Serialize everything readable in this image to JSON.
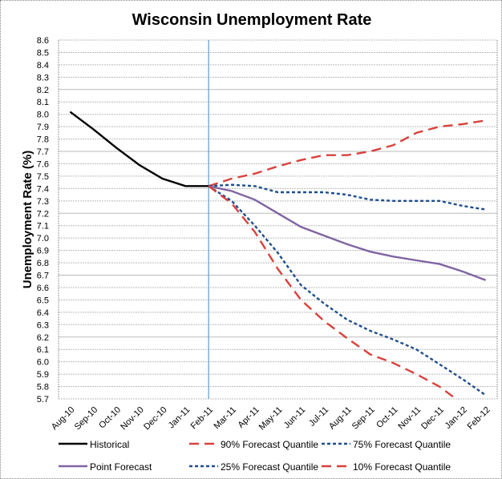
{
  "chart_data": {
    "type": "line",
    "title": "Wisconsin Unemployment Rate",
    "xlabel": "",
    "ylabel": "Unemployment Rate (%)",
    "ylim": [
      5.7,
      8.6
    ],
    "ytick_step": 0.1,
    "grid": true,
    "legend_position": "bottom",
    "forecast_start_marker": "Feb-11",
    "categories": [
      "Aug-10",
      "Sep-10",
      "Oct-10",
      "Nov-10",
      "Dec-10",
      "Jan-11",
      "Feb-11",
      "Mar-11",
      "Apr-11",
      "May-11",
      "Jun-11",
      "Jul-11",
      "Aug-11",
      "Sep-11",
      "Oct-11",
      "Nov-11",
      "Dec-11",
      "Jan-12",
      "Feb-12"
    ],
    "series": [
      {
        "name": "Historical",
        "color": "#000000",
        "dash": "solid",
        "values": [
          8.02,
          7.88,
          7.73,
          7.59,
          7.48,
          7.42,
          7.42,
          null,
          null,
          null,
          null,
          null,
          null,
          null,
          null,
          null,
          null,
          null,
          null
        ]
      },
      {
        "name": "90% Forecast Quantile",
        "color": "#d9413c",
        "dash": "long",
        "values": [
          null,
          null,
          null,
          null,
          null,
          null,
          7.42,
          7.48,
          7.52,
          7.58,
          7.63,
          7.67,
          7.67,
          7.7,
          7.75,
          7.85,
          7.9,
          7.92,
          7.95
        ]
      },
      {
        "name": "75% Forecast Quantile",
        "color": "#1f4e8c",
        "dash": "short",
        "values": [
          null,
          null,
          null,
          null,
          null,
          null,
          7.42,
          7.43,
          7.42,
          7.37,
          7.37,
          7.37,
          7.35,
          7.31,
          7.3,
          7.3,
          7.3,
          7.26,
          7.23
        ]
      },
      {
        "name": "Point Forecast",
        "color": "#8064a2",
        "dash": "solid",
        "values": [
          null,
          null,
          null,
          null,
          null,
          null,
          7.42,
          7.38,
          7.31,
          7.2,
          7.09,
          7.02,
          6.95,
          6.89,
          6.85,
          6.82,
          6.79,
          6.73,
          6.66
        ]
      },
      {
        "name": "25% Forecast Quantile",
        "color": "#1f4e8c",
        "dash": "short",
        "values": [
          null,
          null,
          null,
          null,
          null,
          null,
          7.42,
          7.3,
          7.1,
          6.88,
          6.62,
          6.47,
          6.34,
          6.25,
          6.18,
          6.1,
          5.98,
          5.86,
          5.73
        ]
      },
      {
        "name": "10% Forecast Quantile",
        "color": "#d9413c",
        "dash": "long",
        "values": [
          null,
          null,
          null,
          null,
          null,
          null,
          7.42,
          7.28,
          7.05,
          6.75,
          6.5,
          6.33,
          6.19,
          6.06,
          5.99,
          5.9,
          5.8,
          5.66,
          5.55
        ]
      }
    ]
  }
}
